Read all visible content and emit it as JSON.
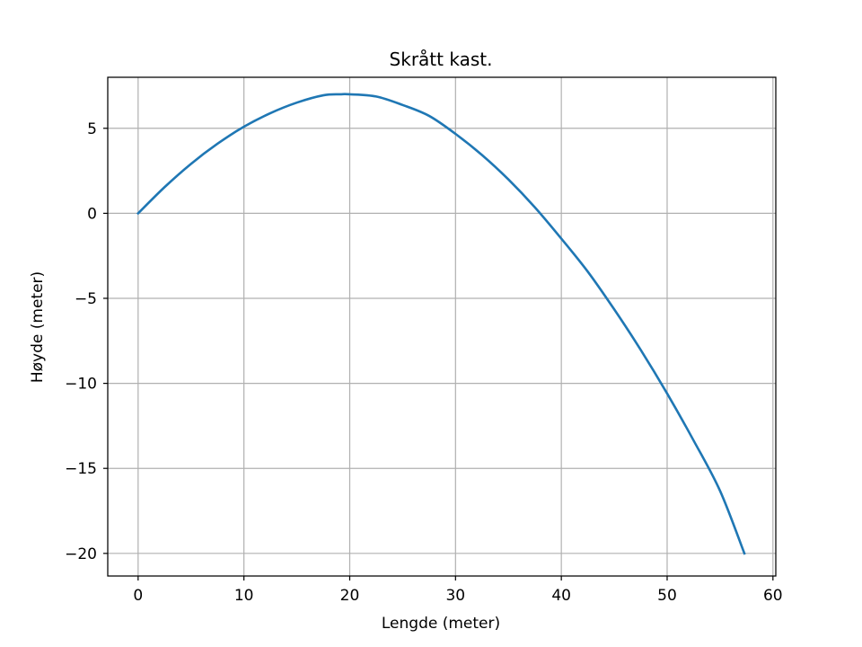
{
  "chart_data": {
    "type": "line",
    "title": "Skrått kast.",
    "xlabel": "Lengde (meter)",
    "ylabel": "Høyde (meter)",
    "xlim": [
      -2.87,
      60.27
    ],
    "ylim": [
      -21.33,
      8.0
    ],
    "grid": true,
    "xticks": [
      0,
      10,
      20,
      30,
      40,
      50,
      60
    ],
    "xtick_labels": [
      "0",
      "10",
      "20",
      "30",
      "40",
      "50",
      "60"
    ],
    "yticks": [
      5,
      0,
      -5,
      -10,
      -15,
      -20
    ],
    "ytick_labels": [
      "5",
      "0",
      "−5",
      "−10",
      "−15",
      "−20"
    ],
    "series": [
      {
        "color": "#1f77b4",
        "x": [
          0,
          2.5,
          5,
          7.5,
          10,
          12.5,
          15,
          17.5,
          19.1,
          20,
          22.5,
          25,
          27.5,
          30,
          32.5,
          35,
          37.5,
          40,
          42.5,
          45,
          47.5,
          50,
          52.5,
          55,
          57.3
        ],
        "y": [
          0,
          1.54,
          2.91,
          4.09,
          5.09,
          5.89,
          6.51,
          6.94,
          7.0,
          7.0,
          6.87,
          6.37,
          5.73,
          4.67,
          3.43,
          1.99,
          0.35,
          -1.49,
          -3.43,
          -5.65,
          -8.03,
          -10.6,
          -13.36,
          -16.32,
          -20.0
        ]
      }
    ]
  }
}
